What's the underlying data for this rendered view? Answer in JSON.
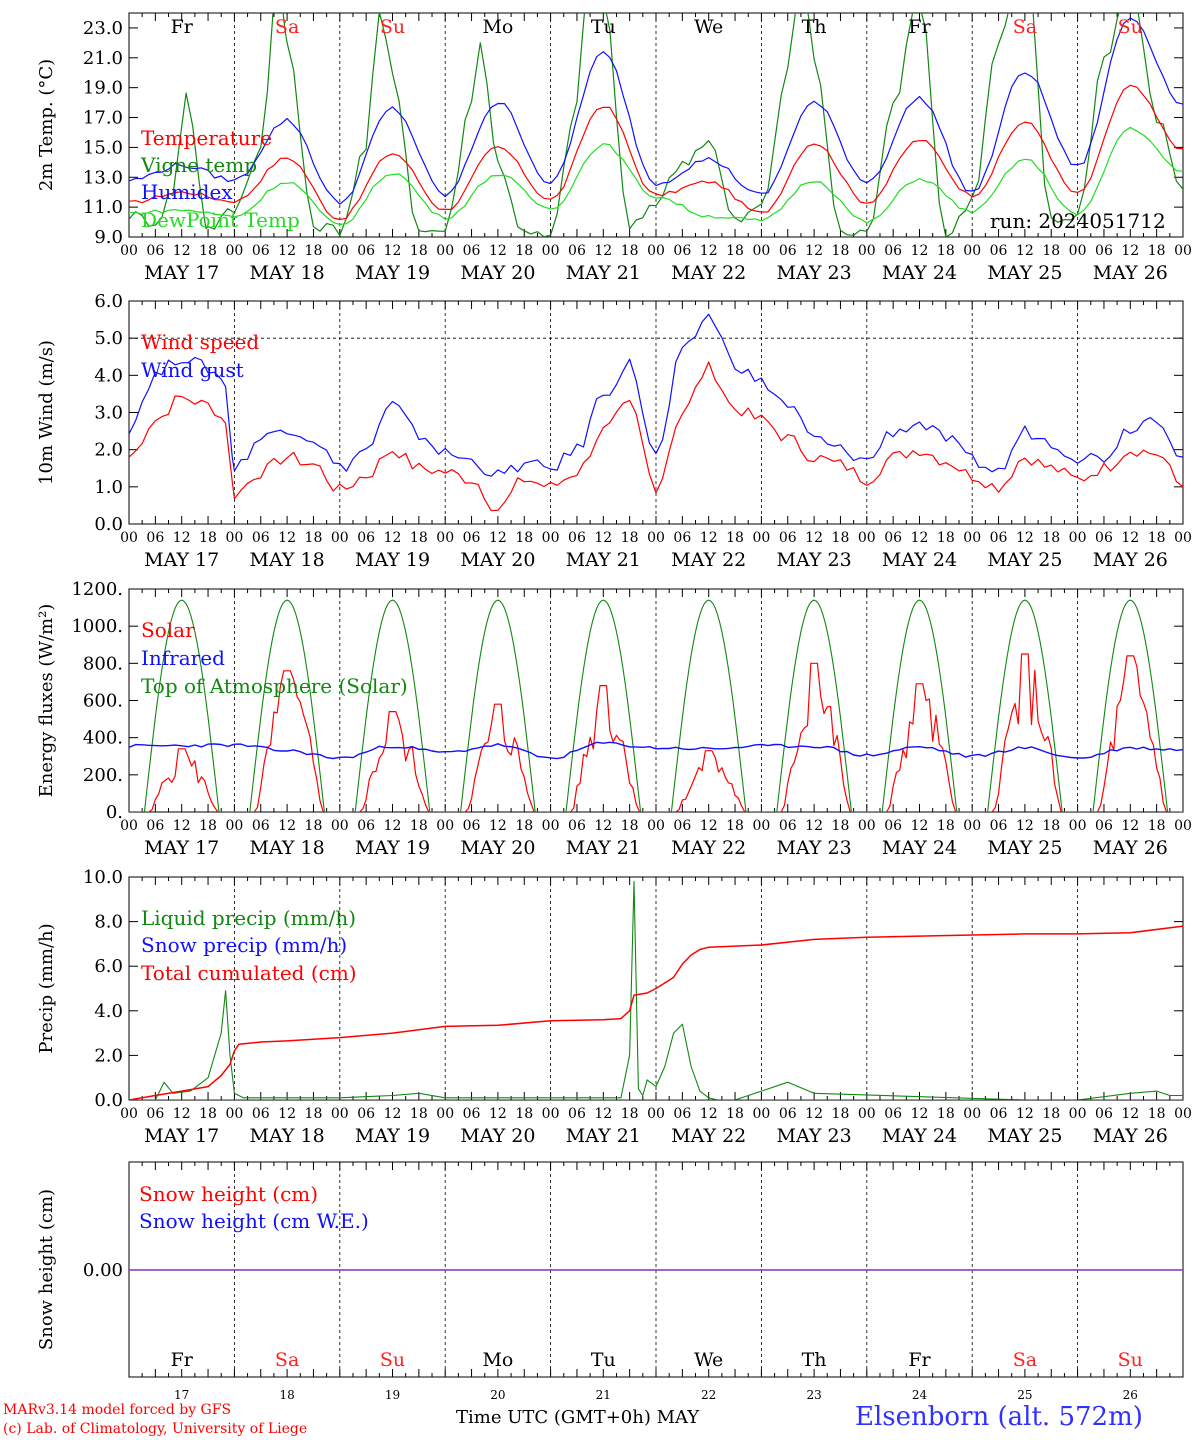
{
  "station": "Elsenborn (alt. 572m)",
  "credits": [
    "MARv3.14 model forced by GFS",
    "(c) Lab. of Climatology, University of Liege"
  ],
  "x_axis_title": "Time UTC (GMT+0h)",
  "month_label": "MAY",
  "run_label": "run: 2024051712",
  "hour_ticks": [
    "00",
    "06",
    "12",
    "18"
  ],
  "days": [
    {
      "date": "MAY 17",
      "weekday": "Fr",
      "num": "17",
      "weekend": false
    },
    {
      "date": "MAY 18",
      "weekday": "Sa",
      "num": "18",
      "weekend": true
    },
    {
      "date": "MAY 19",
      "weekday": "Su",
      "num": "19",
      "weekend": true
    },
    {
      "date": "MAY 20",
      "weekday": "Mo",
      "num": "20",
      "weekend": false
    },
    {
      "date": "MAY 21",
      "weekday": "Tu",
      "num": "21",
      "weekend": false
    },
    {
      "date": "MAY 22",
      "weekday": "We",
      "num": "22",
      "weekend": false
    },
    {
      "date": "MAY 23",
      "weekday": "Th",
      "num": "23",
      "weekend": false
    },
    {
      "date": "MAY 24",
      "weekday": "Fr",
      "num": "24",
      "weekend": false
    },
    {
      "date": "MAY 25",
      "weekday": "Sa",
      "num": "25",
      "weekend": true
    },
    {
      "date": "MAY 26",
      "weekday": "Su",
      "num": "26",
      "weekend": true
    }
  ],
  "colors": {
    "red": "#ff0000",
    "green": "#118811",
    "blue": "#1010ff",
    "lightgreen": "#22dd22",
    "purple": "#8833aa",
    "weekend": "#ff2020"
  },
  "chart_data": [
    {
      "type": "line",
      "ylabel": "2m Temp. (°C)",
      "ylim": [
        9.0,
        24.0
      ],
      "yticks": [
        "9.0",
        "11.0",
        "13.0",
        "15.0",
        "17.0",
        "19.0",
        "21.0",
        "23.0"
      ],
      "x_unit": "hours since MAY 17 00 UTC",
      "legend_placement": "top-left",
      "series": [
        {
          "name": "Temperature",
          "color": "red",
          "x": [
            0,
            12,
            24,
            36,
            48,
            60,
            72,
            84,
            96,
            108,
            120,
            132,
            144,
            156,
            168,
            180,
            192,
            204,
            216,
            228,
            240
          ],
          "y": [
            11.3,
            12.0,
            11.4,
            14.3,
            10.2,
            14.6,
            10.8,
            15.0,
            11.5,
            17.8,
            11.8,
            12.7,
            10.6,
            15.3,
            11.3,
            15.5,
            11.8,
            16.7,
            11.9,
            19.1,
            14.9
          ]
        },
        {
          "name": "Vigne temp",
          "color": "green",
          "x": [
            0,
            6,
            10,
            13,
            18,
            24,
            30,
            34,
            36,
            42,
            48,
            54,
            57,
            60,
            66,
            72,
            78,
            80,
            84,
            90,
            96,
            102,
            105,
            108,
            114,
            120,
            126,
            132,
            138,
            144,
            150,
            153,
            156,
            162,
            168,
            174,
            180,
            186,
            192,
            198,
            204,
            210,
            216,
            222,
            228,
            234,
            240
          ],
          "y": [
            10.5,
            10.0,
            12.0,
            18.5,
            9.6,
            10.8,
            15.0,
            27.0,
            22.0,
            9.8,
            9.5,
            15.0,
            24.0,
            20.0,
            9.4,
            9.5,
            18.0,
            22.0,
            14.0,
            9.2,
            9.0,
            18.0,
            28.0,
            25.0,
            9.5,
            11.4,
            14.0,
            15.5,
            10.0,
            11.0,
            20.0,
            27.0,
            21.0,
            9.3,
            9.2,
            18.0,
            25.0,
            9.0,
            11.5,
            22.0,
            28.0,
            10.0,
            10.5,
            21.0,
            26.0,
            17.0,
            12.2
          ]
        },
        {
          "name": "Humidex",
          "color": "blue",
          "x": [
            0,
            12,
            24,
            36,
            48,
            60,
            72,
            84,
            96,
            108,
            120,
            132,
            144,
            156,
            168,
            180,
            192,
            204,
            216,
            228,
            240
          ],
          "y": [
            12.8,
            13.8,
            12.8,
            16.8,
            11.3,
            17.6,
            11.8,
            18.0,
            12.6,
            21.3,
            12.6,
            14.2,
            11.8,
            18.0,
            12.7,
            18.3,
            12.0,
            20.1,
            13.7,
            23.7,
            17.9
          ]
        },
        {
          "name": "DewPoint Temp",
          "color": "lightgreen",
          "x": [
            0,
            12,
            24,
            36,
            48,
            60,
            72,
            84,
            96,
            108,
            120,
            132,
            144,
            156,
            168,
            180,
            192,
            204,
            216,
            228,
            240
          ],
          "y": [
            10.6,
            10.8,
            10.4,
            12.7,
            9.8,
            13.3,
            10.3,
            13.2,
            10.9,
            15.2,
            11.7,
            10.4,
            10.1,
            12.8,
            10.0,
            12.9,
            10.7,
            14.2,
            10.5,
            16.3,
            13.4
          ]
        }
      ]
    },
    {
      "type": "line",
      "ylabel": "10m Wind (m/s)",
      "ylim": [
        0.0,
        6.0
      ],
      "yticks": [
        "0.0",
        "1.0",
        "2.0",
        "3.0",
        "4.0",
        "5.0",
        "6.0"
      ],
      "reference_line": 5.0,
      "legend_placement": "top-left",
      "series": [
        {
          "name": "Wind speed",
          "color": "red",
          "x": [
            0,
            6,
            12,
            18,
            22,
            24,
            30,
            36,
            42,
            48,
            54,
            60,
            66,
            72,
            78,
            84,
            90,
            96,
            102,
            108,
            114,
            120,
            126,
            132,
            138,
            144,
            150,
            156,
            162,
            168,
            174,
            180,
            186,
            192,
            198,
            204,
            210,
            216,
            222,
            228,
            234,
            240
          ],
          "y": [
            1.8,
            2.8,
            3.4,
            3.2,
            2.8,
            0.8,
            1.4,
            1.8,
            1.6,
            0.9,
            1.3,
            2.0,
            1.5,
            1.4,
            1.2,
            0.4,
            1.2,
            1.0,
            1.4,
            2.5,
            3.2,
            1.0,
            3.0,
            4.2,
            3.1,
            2.8,
            2.3,
            1.8,
            1.6,
            1.2,
            1.8,
            2.0,
            1.7,
            1.3,
            1.0,
            1.8,
            1.5,
            1.2,
            1.5,
            2.0,
            1.9,
            1.0
          ]
        },
        {
          "name": "Wind gust",
          "color": "blue",
          "x": [
            0,
            6,
            12,
            18,
            22,
            24,
            30,
            36,
            42,
            48,
            54,
            60,
            66,
            72,
            78,
            84,
            90,
            96,
            102,
            108,
            114,
            120,
            126,
            132,
            138,
            144,
            150,
            156,
            162,
            168,
            174,
            180,
            186,
            192,
            198,
            204,
            210,
            216,
            222,
            228,
            234,
            240
          ],
          "y": [
            2.6,
            4.0,
            4.5,
            4.2,
            3.8,
            1.5,
            2.3,
            2.6,
            2.3,
            1.5,
            2.0,
            3.2,
            2.4,
            1.9,
            1.7,
            1.3,
            1.6,
            1.5,
            2.0,
            3.5,
            4.3,
            1.8,
            4.6,
            5.6,
            4.3,
            3.8,
            3.2,
            2.3,
            2.0,
            1.7,
            2.5,
            2.7,
            2.3,
            1.7,
            1.4,
            2.5,
            2.2,
            1.8,
            1.8,
            2.6,
            2.9,
            1.8
          ]
        }
      ]
    },
    {
      "type": "line",
      "ylabel": "Energy fluxes (W/m²)",
      "ylim": [
        0,
        1200
      ],
      "yticks": [
        "0.",
        "200.",
        "400.",
        "600.",
        "800.",
        "1000.",
        "1200."
      ],
      "legend_placement": "top-left",
      "series": [
        {
          "name": "Solar",
          "color": "red",
          "peaks": [
            {
              "x": 12,
              "y": 340
            },
            {
              "x": 36,
              "y": 760
            },
            {
              "x": 60,
              "y": 540
            },
            {
              "x": 84,
              "y": 580
            },
            {
              "x": 108,
              "y": 680
            },
            {
              "x": 132,
              "y": 330
            },
            {
              "x": 156,
              "y": 800
            },
            {
              "x": 180,
              "y": 690
            },
            {
              "x": 204,
              "y": 850
            },
            {
              "x": 228,
              "y": 840
            }
          ]
        },
        {
          "name": "Infrared",
          "color": "blue",
          "x": [
            0,
            24,
            36,
            48,
            60,
            72,
            84,
            96,
            108,
            120,
            132,
            144,
            156,
            168,
            180,
            192,
            204,
            216,
            228,
            240
          ],
          "y": [
            355,
            360,
            330,
            290,
            355,
            320,
            360,
            290,
            370,
            345,
            340,
            355,
            355,
            305,
            350,
            300,
            345,
            290,
            345,
            335
          ]
        },
        {
          "name": "Top of Atmosphere (Solar)",
          "color": "green",
          "daily_peak": 1140,
          "daylight_hours": [
            3.5,
            20.5
          ]
        }
      ]
    },
    {
      "type": "line",
      "ylabel": "Precip (mm/h)",
      "ylim": [
        0.0,
        10.0
      ],
      "yticks": [
        "0.0",
        "2.0",
        "4.0",
        "6.0",
        "8.0",
        "10.0"
      ],
      "legend_placement": "top-left",
      "series": [
        {
          "name": "Liquid precip (mm/h)",
          "color": "green",
          "x": [
            0,
            6,
            8,
            10,
            14,
            18,
            21,
            22,
            23,
            24,
            26,
            30,
            48,
            60,
            66,
            72,
            96,
            112,
            114,
            115,
            116,
            117,
            118,
            120,
            122,
            124,
            126,
            128,
            130,
            132,
            134,
            138,
            150,
            156,
            204,
            216,
            228,
            234,
            237,
            240
          ],
          "y": [
            0,
            0,
            0.8,
            0.3,
            0.4,
            1.0,
            3.0,
            4.9,
            2.0,
            0.3,
            0.1,
            0.1,
            0.1,
            0.2,
            0.3,
            0.1,
            0.1,
            0.1,
            2.0,
            9.8,
            0.5,
            0.2,
            0.9,
            0.6,
            1.5,
            3.0,
            3.4,
            1.5,
            0.4,
            0.1,
            0.0,
            0.0,
            0.8,
            0.3,
            0.0,
            0.0,
            0.3,
            0.4,
            0.2,
            0.2
          ]
        },
        {
          "name": "Snow precip (mm/h)",
          "color": "blue",
          "x": [
            0,
            240
          ],
          "y": [
            0,
            0
          ]
        },
        {
          "name": "Total cumulated (cm)",
          "color": "red",
          "x": [
            0,
            6,
            12,
            18,
            21,
            23,
            24,
            25,
            30,
            36,
            48,
            60,
            72,
            84,
            96,
            108,
            112,
            114,
            115,
            118,
            120,
            124,
            126,
            128,
            130,
            132,
            144,
            156,
            168,
            180,
            192,
            204,
            216,
            228,
            240
          ],
          "y": [
            0,
            0.2,
            0.4,
            0.6,
            1.1,
            1.6,
            2.2,
            2.5,
            2.6,
            2.65,
            2.8,
            3.0,
            3.3,
            3.35,
            3.55,
            3.6,
            3.65,
            4.0,
            4.7,
            4.8,
            5.0,
            5.5,
            6.1,
            6.5,
            6.75,
            6.85,
            6.95,
            7.2,
            7.3,
            7.35,
            7.4,
            7.45,
            7.45,
            7.5,
            7.8
          ]
        }
      ]
    },
    {
      "type": "line",
      "ylabel": "Snow height (cm)",
      "yticks": [
        "0.00"
      ],
      "legend_placement": "top-left",
      "series": [
        {
          "name": "Snow height (cm)",
          "color": "red",
          "x": [
            0,
            240
          ],
          "y": [
            0,
            0
          ]
        },
        {
          "name": "Snow height (cm W.E.)",
          "color": "blue",
          "x": [
            0,
            240
          ],
          "y": [
            0,
            0
          ]
        }
      ]
    }
  ]
}
